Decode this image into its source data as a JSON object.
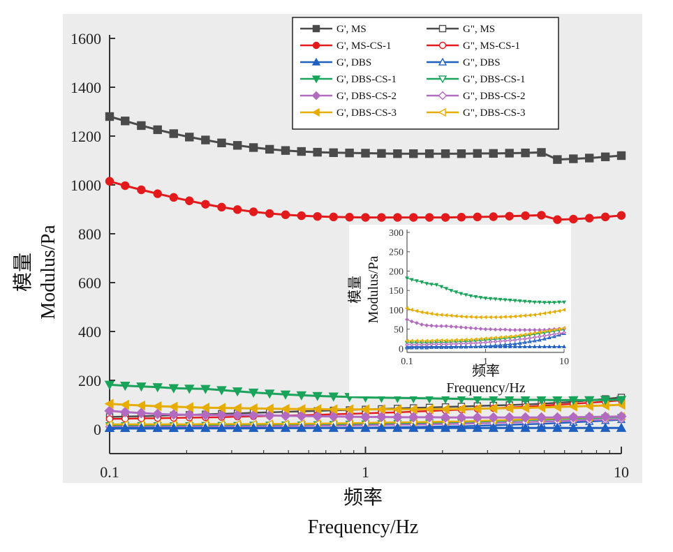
{
  "chart_data": [
    {
      "type": "line",
      "ylabel_cn": "模量",
      "ylabel": "Modulus/Pa",
      "xlabel_cn": "频率",
      "xlabel": "Frequency/Hz",
      "x_scale": "log",
      "xlim": [
        0.1,
        10
      ],
      "ylim": [
        -100,
        1600
      ],
      "x_tick_labels": [
        "0.1",
        "1",
        "10"
      ],
      "y_tick_labels": [
        "0",
        "200",
        "400",
        "600",
        "800",
        "1000",
        "1200",
        "1400",
        "1600"
      ],
      "legend": "top-right",
      "x": [
        0.1,
        0.115,
        0.133,
        0.154,
        0.178,
        0.205,
        0.237,
        0.274,
        0.316,
        0.365,
        0.422,
        0.487,
        0.562,
        0.649,
        0.75,
        0.866,
        1.0,
        1.155,
        1.334,
        1.54,
        1.778,
        2.054,
        2.371,
        2.738,
        3.162,
        3.652,
        4.217,
        4.87,
        5.623,
        6.494,
        7.499,
        8.66,
        10.0
      ],
      "series": [
        {
          "name": "G', MS",
          "color": "#4a4a4a",
          "marker": "square",
          "filled": true,
          "values": [
            1280,
            1262,
            1243,
            1226,
            1210,
            1196,
            1184,
            1172,
            1162,
            1153,
            1146,
            1141,
            1137,
            1134,
            1132,
            1131,
            1130,
            1129,
            1128,
            1128,
            1128,
            1128,
            1128,
            1129,
            1129,
            1130,
            1131,
            1133,
            1104,
            1107,
            1110,
            1115,
            1120
          ]
        },
        {
          "name": "G\", MS",
          "color": "#4a4a4a",
          "marker": "square",
          "filled": false,
          "values": [
            50,
            52,
            53,
            55,
            57,
            59,
            61,
            63,
            65,
            67,
            69,
            71,
            73,
            75,
            77,
            79,
            81,
            83,
            85,
            87,
            89,
            91,
            93,
            95,
            97,
            99,
            101,
            104,
            108,
            112,
            118,
            124,
            130
          ]
        },
        {
          "name": "G', MS-CS-1",
          "color": "#e31a1c",
          "marker": "circle",
          "filled": true,
          "values": [
            1015,
            997,
            980,
            964,
            949,
            935,
            921,
            909,
            899,
            890,
            883,
            878,
            874,
            871,
            869,
            868,
            867,
            867,
            867,
            867,
            867,
            867,
            868,
            869,
            870,
            872,
            874,
            876,
            858,
            860,
            864,
            869,
            875
          ]
        },
        {
          "name": "G\", MS-CS-1",
          "color": "#e31a1c",
          "marker": "circle",
          "filled": false,
          "values": [
            42,
            43,
            44,
            45,
            46,
            47,
            48,
            49,
            51,
            52,
            54,
            56,
            57,
            59,
            61,
            63,
            65,
            67,
            69,
            72,
            74,
            77,
            80,
            83,
            86,
            89,
            92,
            96,
            100,
            104,
            108,
            113,
            118
          ]
        },
        {
          "name": "G', DBS",
          "color": "#1f5fbf",
          "marker": "triangle-up",
          "filled": true,
          "values": [
            5,
            5,
            5,
            5,
            5,
            5,
            5,
            5,
            5,
            5,
            5,
            5,
            5,
            5,
            5,
            5,
            5,
            5,
            5,
            5,
            5,
            5,
            5,
            5,
            5,
            5,
            5,
            5,
            5,
            5,
            5,
            5,
            5
          ]
        },
        {
          "name": "G\", DBS",
          "color": "#1f5fbf",
          "marker": "triangle-up",
          "filled": false,
          "values": [
            2,
            2,
            2,
            2,
            2,
            3,
            3,
            3,
            3,
            3,
            4,
            4,
            4,
            5,
            5,
            6,
            6,
            7,
            8,
            9,
            10,
            11,
            12,
            14,
            16,
            18,
            20,
            22,
            25,
            28,
            31,
            35,
            39
          ]
        },
        {
          "name": "G', DBS-CS-1",
          "color": "#1aa35a",
          "marker": "triangle-down",
          "filled": true,
          "values": [
            182,
            178,
            175,
            172,
            168,
            166,
            165,
            160,
            155,
            150,
            146,
            142,
            139,
            136,
            134,
            132,
            130,
            129,
            128,
            127,
            126,
            125,
            124,
            123,
            122,
            121,
            120,
            120,
            119,
            119,
            119,
            120,
            120
          ]
        },
        {
          "name": "G\", DBS-CS-1",
          "color": "#1aa35a",
          "marker": "triangle-down",
          "filled": false,
          "values": [
            15,
            15,
            15,
            15,
            15,
            15,
            16,
            16,
            16,
            17,
            17,
            18,
            18,
            19,
            20,
            21,
            22,
            23,
            24,
            25,
            26,
            28,
            29,
            31,
            33,
            35,
            37,
            39,
            41,
            43,
            45,
            47,
            49
          ]
        },
        {
          "name": "G', DBS-CS-2",
          "color": "#b36bc1",
          "marker": "diamond",
          "filled": true,
          "values": [
            75,
            70,
            66,
            62,
            60,
            59,
            58,
            58,
            58,
            57,
            56,
            55,
            54,
            53,
            52,
            51,
            50,
            50,
            49,
            49,
            49,
            48,
            48,
            48,
            48,
            48,
            48,
            48,
            48,
            49,
            50,
            51,
            52
          ]
        },
        {
          "name": "G\", DBS-CS-2",
          "color": "#b36bc1",
          "marker": "diamond",
          "filled": false,
          "values": [
            10,
            10,
            10,
            10,
            10,
            11,
            11,
            11,
            11,
            12,
            12,
            13,
            13,
            14,
            14,
            15,
            16,
            17,
            18,
            19,
            20,
            21,
            22,
            24,
            25,
            27,
            29,
            31,
            33,
            35,
            37,
            39,
            41
          ]
        },
        {
          "name": "G', DBS-CS-3",
          "color": "#e6ac00",
          "marker": "triangle-left",
          "filled": true,
          "values": [
            104,
            100,
            97,
            94,
            92,
            90,
            88,
            87,
            86,
            85,
            84,
            83,
            82,
            82,
            81,
            81,
            81,
            81,
            81,
            81,
            82,
            82,
            83,
            84,
            85,
            86,
            87,
            89,
            91,
            93,
            95,
            97,
            100
          ]
        },
        {
          "name": "G\", DBS-CS-3",
          "color": "#e6ac00",
          "marker": "triangle-left",
          "filled": false,
          "values": [
            20,
            20,
            20,
            20,
            20,
            20,
            21,
            21,
            21,
            21,
            22,
            22,
            23,
            23,
            24,
            25,
            26,
            27,
            28,
            29,
            30,
            31,
            32,
            34,
            36,
            38,
            40,
            42,
            44,
            46,
            48,
            50,
            53
          ]
        }
      ]
    },
    {
      "type": "line",
      "inset_of": "main",
      "ylabel_cn": "模量",
      "ylabel": "Modulus/Pa",
      "xlabel_cn": "频率",
      "xlabel": "Frequency/Hz",
      "x_scale": "log",
      "xlim": [
        0.1,
        10
      ],
      "ylim": [
        -10,
        300
      ],
      "x_tick_labels": [
        "0.1",
        "1",
        "10"
      ],
      "y_tick_labels": [
        "0",
        "50",
        "100",
        "150",
        "200",
        "250",
        "300"
      ],
      "series_from": "main (DBS, DBS-CS-1, DBS-CS-2, DBS-CS-3)"
    }
  ]
}
